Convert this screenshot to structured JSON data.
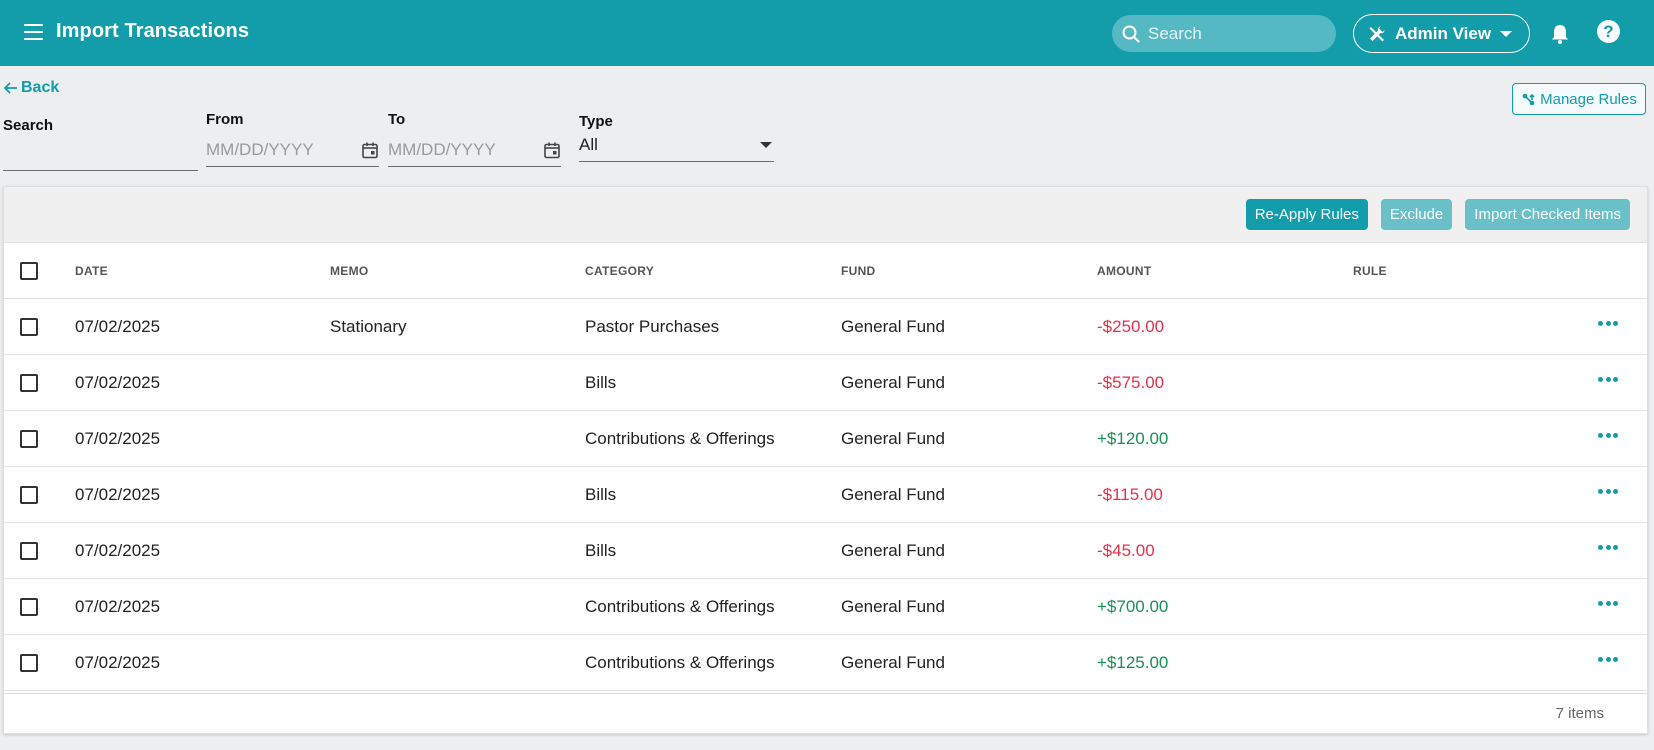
{
  "header": {
    "title": "Import Transactions",
    "search_placeholder": "Search",
    "admin_label": "Admin View",
    "help_label": "?"
  },
  "colors": {
    "brand": "#139ca9",
    "negative": "#e4324b",
    "positive": "#1a8f55"
  },
  "filters": {
    "back_label": "Back",
    "manage_rules_label": "Manage Rules",
    "search_label": "Search",
    "search_value": "",
    "from_label": "From",
    "from_placeholder": "MM/DD/YYYY",
    "to_label": "To",
    "to_placeholder": "MM/DD/YYYY",
    "type_label": "Type",
    "type_value": "All"
  },
  "toolbar": {
    "reapply_label": "Re-Apply Rules",
    "exclude_label": "Exclude",
    "import_label": "Import Checked Items"
  },
  "table": {
    "columns": [
      "DATE",
      "MEMO",
      "CATEGORY",
      "FUND",
      "AMOUNT",
      "RULE"
    ],
    "rows": [
      {
        "date": "07/02/2025",
        "memo": "Stationary",
        "category": "Pastor Purchases",
        "fund": "General Fund",
        "amount": "-$250.00",
        "sign": "neg",
        "rule": ""
      },
      {
        "date": "07/02/2025",
        "memo": "",
        "category": "Bills",
        "fund": "General Fund",
        "amount": "-$575.00",
        "sign": "neg",
        "rule": ""
      },
      {
        "date": "07/02/2025",
        "memo": "",
        "category": "Contributions & Offerings",
        "fund": "General Fund",
        "amount": "+$120.00",
        "sign": "pos",
        "rule": ""
      },
      {
        "date": "07/02/2025",
        "memo": "",
        "category": "Bills",
        "fund": "General Fund",
        "amount": "-$115.00",
        "sign": "neg",
        "rule": ""
      },
      {
        "date": "07/02/2025",
        "memo": "",
        "category": "Bills",
        "fund": "General Fund",
        "amount": "-$45.00",
        "sign": "neg",
        "rule": ""
      },
      {
        "date": "07/02/2025",
        "memo": "",
        "category": "Contributions & Offerings",
        "fund": "General Fund",
        "amount": "+$700.00",
        "sign": "pos",
        "rule": ""
      },
      {
        "date": "07/02/2025",
        "memo": "",
        "category": "Contributions & Offerings",
        "fund": "General Fund",
        "amount": "+$125.00",
        "sign": "pos",
        "rule": ""
      }
    ],
    "footer_count": "7 items"
  }
}
